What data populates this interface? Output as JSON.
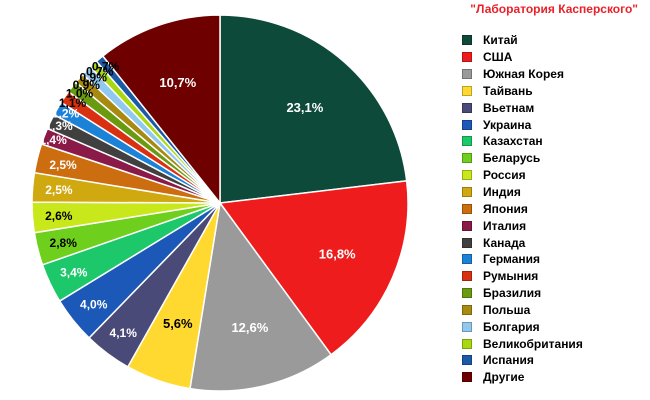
{
  "source": "\"Лаборатория Касперского\"",
  "chart_data": {
    "type": "pie",
    "title": "",
    "legend_position": "right",
    "labels": [
      "Китай",
      "США",
      "Южная Корея",
      "Тайвань",
      "Вьетнам",
      "Украина",
      "Казахстан",
      "Беларусь",
      "Россия",
      "Индия",
      "Япония",
      "Италия",
      "Канада",
      "Германия",
      "Румыния",
      "Бразилия",
      "Польша",
      "Болгария",
      "Великобритания",
      "Испания",
      "Другие"
    ],
    "values": [
      23.1,
      16.8,
      12.6,
      5.6,
      4.1,
      4.0,
      3.4,
      2.8,
      2.6,
      2.5,
      2.5,
      1.4,
      1.3,
      1.2,
      1.1,
      1.0,
      0.9,
      0.9,
      0.7,
      0.7,
      10.7
    ],
    "display_labels": [
      "23,1%",
      "16,8%",
      "12,6%",
      "5,6%",
      "4,1%",
      "4,0%",
      "3,4%",
      "2,8%",
      "2,6%",
      "2,5%",
      "2,5%",
      "1,4%",
      "1,3%",
      "1,2%",
      "1,1%",
      "1,0%",
      "0,9%",
      "0,9%",
      "0,7%",
      "0,7%",
      "10,7%"
    ],
    "colors": [
      "#0d4a3a",
      "#ee1c1c",
      "#9a9a9a",
      "#ffd92f",
      "#4a4a78",
      "#1c58b8",
      "#1cc86a",
      "#6ed01c",
      "#c8e81c",
      "#d0a810",
      "#cc6e10",
      "#8a1a48",
      "#404040",
      "#1c82d8",
      "#d83010",
      "#6a9a10",
      "#a88a10",
      "#90c8f0",
      "#a8d810",
      "#1c5aa8",
      "#6e0000"
    ]
  }
}
